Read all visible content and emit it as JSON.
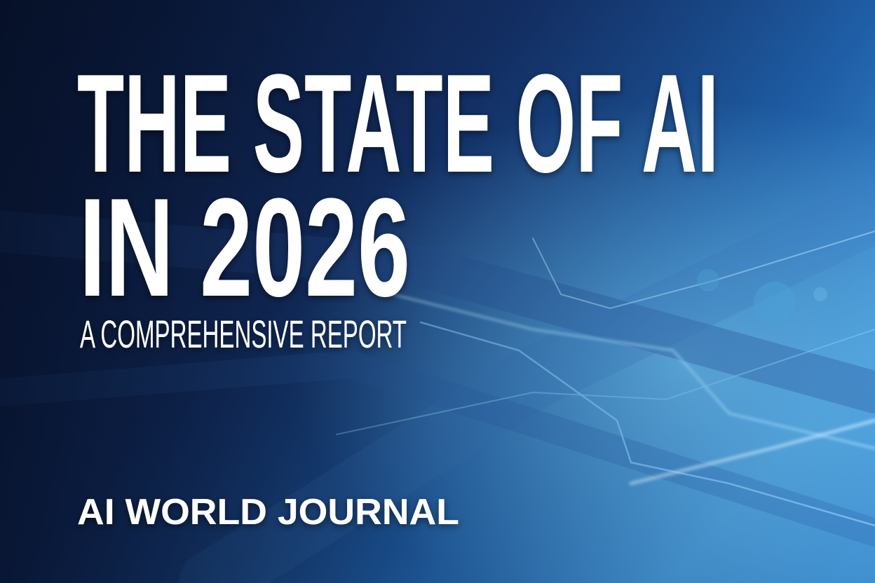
{
  "cover": {
    "title_lines": [
      "THE STATE OF AI",
      "IN 2026"
    ],
    "subtitle": "A COMPREHENSIVE REPORT",
    "publisher": "AI WORLD JOURNAL"
  }
}
